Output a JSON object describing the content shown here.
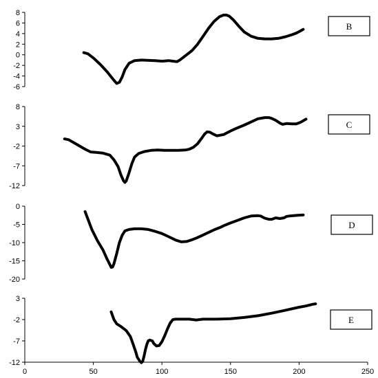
{
  "chart_data": [
    {
      "type": "line",
      "title": "",
      "legend": "B",
      "ylim": [
        -6,
        8
      ],
      "yticks": [
        -6,
        -4,
        -2,
        0,
        2,
        4,
        6,
        8
      ],
      "x": [
        43,
        46,
        50,
        55,
        60,
        64,
        67,
        69,
        71,
        73,
        76,
        80,
        85,
        95,
        100,
        105,
        108,
        111,
        113,
        115,
        118,
        122,
        126,
        130,
        134,
        138,
        142,
        145,
        147,
        149,
        152,
        156,
        160,
        165,
        170,
        175,
        180,
        185,
        190,
        195,
        198,
        201,
        203
      ],
      "y": [
        0.4,
        0.2,
        -0.6,
        -1.8,
        -3.2,
        -4.5,
        -5.4,
        -5.2,
        -4.2,
        -2.8,
        -1.6,
        -1.1,
        -1.0,
        -1.1,
        -1.2,
        -1.1,
        -1.2,
        -1.3,
        -1.0,
        -0.6,
        0.0,
        0.8,
        2.0,
        3.5,
        5.0,
        6.3,
        7.2,
        7.5,
        7.5,
        7.3,
        6.6,
        5.4,
        4.3,
        3.5,
        3.1,
        3.0,
        3.0,
        3.1,
        3.4,
        3.8,
        4.1,
        4.5,
        4.8
      ]
    },
    {
      "type": "line",
      "title": "",
      "legend": "C",
      "ylim": [
        -12,
        8
      ],
      "yticks": [
        -12,
        -7,
        -2,
        3,
        8
      ],
      "x": [
        29,
        32,
        36,
        40,
        44,
        48,
        52,
        57,
        62,
        65,
        68,
        70,
        72,
        73,
        74,
        76,
        78,
        80,
        83,
        87,
        92,
        97,
        102,
        107,
        112,
        117,
        120,
        123,
        126,
        129,
        131,
        133,
        135,
        137,
        140,
        145,
        150,
        155,
        160,
        165,
        170,
        175,
        178,
        180,
        183,
        186,
        188,
        191,
        195,
        198,
        201,
        203,
        205
      ],
      "y": [
        -0.2,
        -0.4,
        -1.2,
        -2.0,
        -2.8,
        -3.5,
        -3.6,
        -3.8,
        -4.3,
        -5.5,
        -7.2,
        -9.2,
        -10.8,
        -11.2,
        -10.8,
        -8.8,
        -6.5,
        -4.8,
        -3.9,
        -3.4,
        -3.1,
        -3.0,
        -3.1,
        -3.1,
        -3.1,
        -3.0,
        -2.8,
        -2.3,
        -1.4,
        0.0,
        1.0,
        1.6,
        1.5,
        1.1,
        0.6,
        0.9,
        1.8,
        2.6,
        3.3,
        4.1,
        4.9,
        5.2,
        5.2,
        5.0,
        4.5,
        3.8,
        3.5,
        3.7,
        3.6,
        3.6,
        4.0,
        4.4,
        4.8
      ]
    },
    {
      "type": "line",
      "title": "",
      "legend": "D",
      "ylim": [
        -20,
        0
      ],
      "yticks": [
        -20,
        -15,
        -10,
        -5,
        0
      ],
      "x": [
        44,
        46,
        49,
        53,
        57,
        60,
        62,
        63,
        64,
        65,
        67,
        69,
        71,
        73,
        76,
        80,
        85,
        90,
        95,
        100,
        105,
        110,
        114,
        118,
        122,
        126,
        130,
        134,
        138,
        142,
        146,
        150,
        155,
        160,
        165,
        170,
        172,
        175,
        178,
        180,
        183,
        186,
        189,
        191,
        193,
        196,
        199,
        203
      ],
      "y": [
        -1.5,
        -3.5,
        -6.5,
        -9.5,
        -12.0,
        -14.5,
        -16.0,
        -16.8,
        -16.7,
        -15.8,
        -13.0,
        -10.0,
        -8.0,
        -6.8,
        -6.4,
        -6.2,
        -6.2,
        -6.4,
        -6.9,
        -7.5,
        -8.4,
        -9.3,
        -9.8,
        -9.7,
        -9.2,
        -8.6,
        -7.9,
        -7.2,
        -6.5,
        -5.9,
        -5.2,
        -4.6,
        -3.9,
        -3.2,
        -2.7,
        -2.6,
        -2.7,
        -3.3,
        -3.6,
        -3.6,
        -3.2,
        -3.4,
        -3.2,
        -2.8,
        -2.7,
        -2.6,
        -2.5,
        -2.4
      ]
    },
    {
      "type": "line",
      "title": "",
      "legend": "E",
      "ylim": [
        -12,
        3
      ],
      "yticks": [
        -12,
        -7,
        -2,
        3
      ],
      "x": [
        63,
        64,
        65,
        67,
        70,
        74,
        77,
        79,
        81,
        82,
        84,
        85,
        86,
        87,
        88,
        89,
        90,
        91,
        93,
        94,
        96,
        98,
        100,
        102,
        104,
        106,
        108,
        110,
        115,
        120,
        125,
        130,
        140,
        150,
        160,
        170,
        180,
        190,
        200,
        205,
        210,
        212
      ],
      "y": [
        -0.2,
        -1.1,
        -2.0,
        -3.0,
        -3.6,
        -4.6,
        -6.0,
        -7.8,
        -9.7,
        -10.8,
        -11.8,
        -12.1,
        -11.8,
        -10.5,
        -9.0,
        -7.8,
        -7.0,
        -6.8,
        -7.0,
        -7.6,
        -8.2,
        -8.1,
        -7.2,
        -5.8,
        -4.2,
        -2.8,
        -2.0,
        -1.9,
        -1.9,
        -1.9,
        -2.1,
        -1.9,
        -1.9,
        -1.8,
        -1.5,
        -1.1,
        -0.5,
        0.2,
        0.9,
        1.2,
        1.6,
        1.7
      ]
    }
  ],
  "x_axis": {
    "xlim": [
      0,
      250
    ],
    "ticks": [
      0,
      50,
      100,
      150,
      200,
      250
    ]
  }
}
